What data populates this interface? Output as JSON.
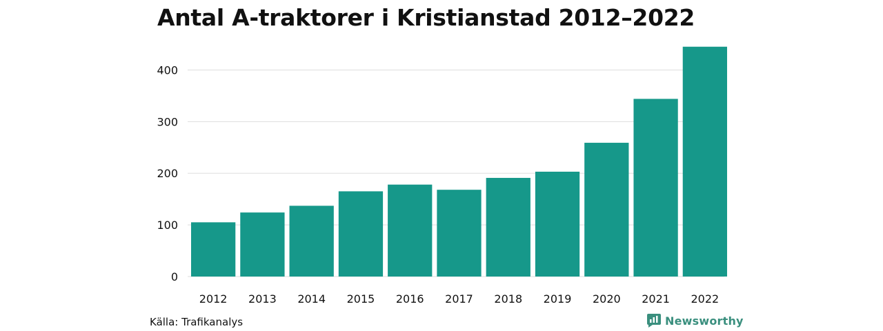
{
  "chart_data": {
    "type": "bar",
    "title": "Antal A-traktorer i Kristianstad 2012–2022",
    "xlabel": "",
    "ylabel": "",
    "categories": [
      "2012",
      "2013",
      "2014",
      "2015",
      "2016",
      "2017",
      "2018",
      "2019",
      "2020",
      "2021",
      "2022"
    ],
    "values": [
      105,
      124,
      137,
      165,
      178,
      168,
      191,
      203,
      259,
      344,
      445
    ],
    "ylim": [
      0,
      450
    ],
    "yticks": [
      0,
      100,
      200,
      300,
      400
    ],
    "grid": true,
    "legend": "none",
    "bar_color": "#16988a"
  },
  "footer": {
    "source": "Källa: Trafikanalys",
    "logo_text": "Newsworthy",
    "logo_icon": "newsworthy-logo-icon"
  },
  "colors": {
    "bar": "#16988a",
    "grid": "#dddddd",
    "logo": "#3a8f7e"
  }
}
